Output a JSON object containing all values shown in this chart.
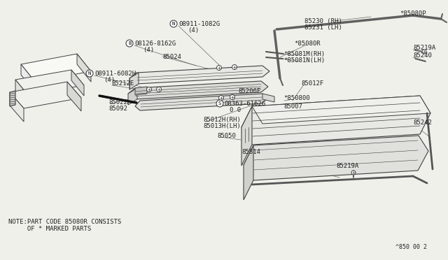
{
  "bg_color": "#f0f0eb",
  "line_color": "#404040",
  "text_color": "#222222",
  "note_line1": "NOTE:PART CODE 85080R CONSISTS",
  "note_line2": "     OF * MARKED PARTS",
  "footer": "^850 00 2"
}
